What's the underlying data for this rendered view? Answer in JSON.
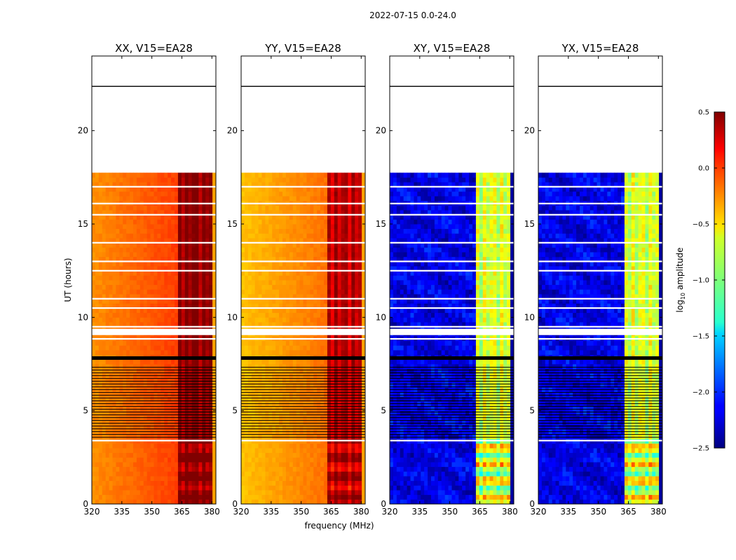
{
  "figure": {
    "suptitle": "2022-07-15 0.0-24.0",
    "xlabel": "frequency (MHz)",
    "ylabel": "UT (hours)",
    "colorbar_label": "log",
    "colorbar_label_sub": "10",
    "colorbar_label_rest": " amplitude"
  },
  "chart_data": {
    "type": "heatmap",
    "title": "2022-07-15 0.0-24.0",
    "xlabel": "frequency (MHz)",
    "ylabel": "UT (hours)",
    "xlim": [
      320,
      382
    ],
    "ylim": [
      0,
      24
    ],
    "x_ticks": [
      320,
      335,
      350,
      365,
      380
    ],
    "x_tick_labels": [
      "320",
      "335",
      "350",
      "365",
      "380"
    ],
    "y_ticks": [
      0,
      5,
      10,
      15,
      20
    ],
    "y_tick_labels": [
      "0",
      "5",
      "10",
      "15",
      "20"
    ],
    "colorbar": {
      "label": "log10 amplitude",
      "colormap": "jet",
      "range": [
        -2.5,
        0.5
      ],
      "ticks": [
        0.5,
        0.0,
        -0.5,
        -1.0,
        -1.5,
        -2.0,
        -2.5
      ],
      "tick_labels": [
        "0.5",
        "0.0",
        "−0.5",
        "−1.0",
        "−1.5",
        "−2.0",
        "−2.5"
      ]
    },
    "panels": [
      {
        "name": "XX",
        "title": "XX, V15=EA28",
        "kind": "parallel",
        "base_level": 0.05,
        "band_level": 0.6
      },
      {
        "name": "YY",
        "title": "YY, V15=EA28",
        "kind": "parallel",
        "base_level": -0.1,
        "band_level": 0.45
      },
      {
        "name": "XY",
        "title": "XY, V15=EA28",
        "kind": "cross",
        "base_level": -2.2,
        "band_level": -1.0
      },
      {
        "name": "YX",
        "title": "YX, V15=EA28",
        "kind": "cross",
        "base_level": -2.2,
        "band_level": -1.0
      }
    ],
    "data_rows_ut": [
      [
        0,
        17.7
      ],
      [
        22.4,
        22.6
      ]
    ],
    "band_frequency_range_mhz": [
      363,
      380
    ],
    "notes": "Dynamic spectra of log10 amplitude vs frequency and UT; blank (white) where no data."
  }
}
